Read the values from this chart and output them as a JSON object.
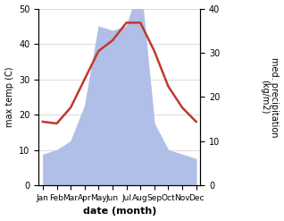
{
  "months": [
    "Jan",
    "Feb",
    "Mar",
    "Apr",
    "May",
    "Jun",
    "Jul",
    "Aug",
    "Sep",
    "Oct",
    "Nov",
    "Dec"
  ],
  "temperature": [
    18,
    17.5,
    22,
    30,
    38,
    41,
    46,
    46,
    38,
    28,
    22,
    18
  ],
  "precipitation": [
    7,
    8,
    10,
    18,
    36,
    35,
    36,
    46,
    14,
    8,
    7,
    6
  ],
  "temp_color": "#c0392b",
  "precip_color": "#b0bee8",
  "precip_edge_color": "#9090c0",
  "ylabel_left": "max temp (C)",
  "ylabel_right": "med. precipitation\n(kg/m2)",
  "xlabel": "date (month)",
  "ylim_left": [
    0,
    50
  ],
  "ylim_right": [
    0,
    40
  ],
  "yticks_left": [
    0,
    10,
    20,
    30,
    40,
    50
  ],
  "yticks_right": [
    0,
    10,
    20,
    30,
    40
  ],
  "background_color": "#ffffff",
  "line_width": 1.8,
  "temp_scale_max": 50,
  "precip_scale_max": 40
}
